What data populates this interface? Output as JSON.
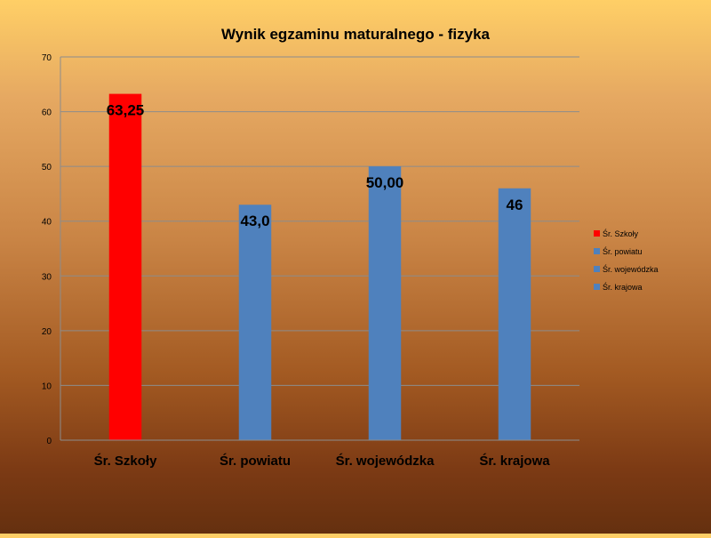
{
  "chart_data": {
    "type": "bar",
    "title": "Wynik egzaminu maturalnego - fizyka",
    "categories": [
      "Śr. Szkoły",
      "Śr. powiatu",
      "Śr. wojewódzka",
      "Śr. krajowa"
    ],
    "series": [
      {
        "name": "Śr. Szkoły",
        "color": "#FF0000",
        "values": [
          63.25,
          null,
          null,
          null
        ]
      },
      {
        "name": "Śr. powiatu",
        "color": "#4F81BD",
        "values": [
          null,
          43.0,
          null,
          null
        ]
      },
      {
        "name": "Śr. wojewódzka",
        "color": "#4F81BD",
        "values": [
          null,
          null,
          50.0,
          null
        ]
      },
      {
        "name": "Śr. krajowa",
        "color": "#4F81BD",
        "values": [
          null,
          null,
          null,
          46
        ]
      }
    ],
    "values": [
      63.25,
      43.0,
      50.0,
      46
    ],
    "data_labels": [
      "63,25",
      "43,0",
      "50,00",
      "46"
    ],
    "bar_colors": [
      "#FF0000",
      "#4F81BD",
      "#4F81BD",
      "#4F81BD"
    ],
    "ylim": [
      0,
      70
    ],
    "yticks": [
      0,
      10,
      20,
      30,
      40,
      50,
      60,
      70
    ],
    "grid": true,
    "legend_position": "right"
  }
}
